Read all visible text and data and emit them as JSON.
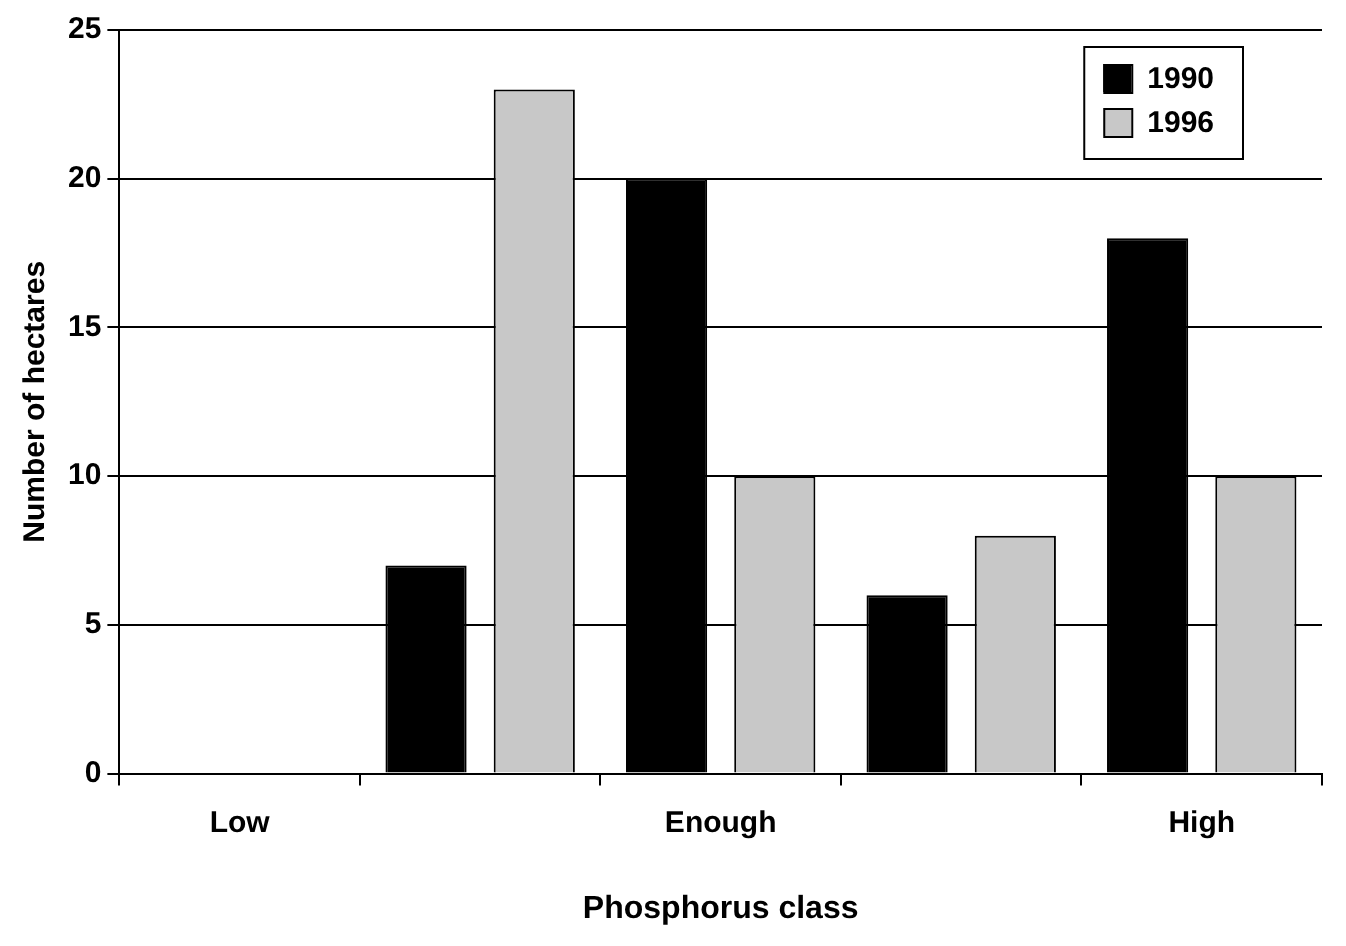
{
  "chart_data": {
    "type": "bar",
    "xlabel": "Phosphorus class",
    "ylabel": "Number of hectares",
    "categories": [
      "Low",
      null,
      "Enough",
      null,
      "High"
    ],
    "series": [
      {
        "name": "1990",
        "color": "#000000",
        "values": [
          0,
          7,
          20,
          6,
          18
        ]
      },
      {
        "name": "1996",
        "color": "#c8c8c8",
        "values": [
          0,
          23,
          10,
          8,
          10
        ]
      }
    ],
    "ylim": [
      0,
      25
    ],
    "yticks": [
      0,
      5,
      10,
      15,
      20,
      25
    ],
    "grid": "y",
    "legend": "top right"
  }
}
